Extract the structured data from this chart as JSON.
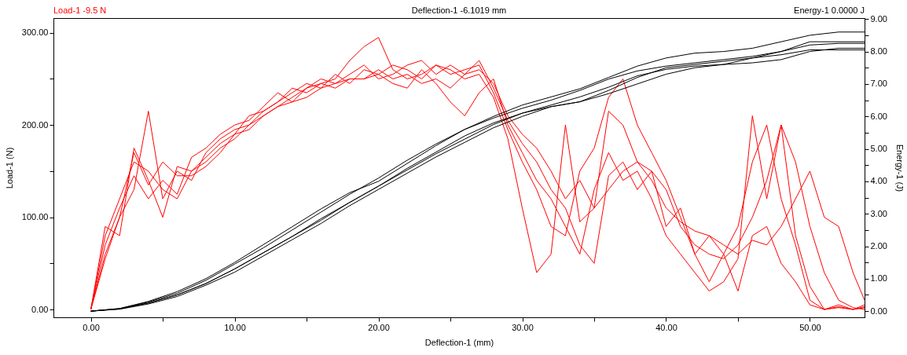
{
  "chart_data": {
    "type": "line",
    "xlabel": "Deflection-1 (mm)",
    "ylabel": "Load-1 (N)",
    "y2label": "Energy-1 (J)",
    "annotations": [
      "Load-1  -9.5 N",
      "Deflection-1  -6.1019 mm",
      "Energy-1  0.0000 J"
    ],
    "xlim": [
      -2.6,
      53.8
    ],
    "ylim": [
      -8.5,
      316
    ],
    "y2lim": [
      -0.19,
      9.03
    ],
    "xticks": [
      {
        "value": 0,
        "label": "0.00"
      },
      {
        "value": 5,
        "label": null
      },
      {
        "value": 10,
        "label": "10.00"
      },
      {
        "value": 15,
        "label": null
      },
      {
        "value": 20,
        "label": "20.00"
      },
      {
        "value": 25,
        "label": null
      },
      {
        "value": 30,
        "label": "30.00"
      },
      {
        "value": 35,
        "label": null
      },
      {
        "value": 40,
        "label": "40.00"
      },
      {
        "value": 45,
        "label": null
      },
      {
        "value": 50,
        "label": "50.00"
      }
    ],
    "yticks": [
      {
        "value": 0,
        "label": "0.00"
      },
      {
        "value": 50,
        "label": null
      },
      {
        "value": 100,
        "label": "100.00"
      },
      {
        "value": 150,
        "label": null
      },
      {
        "value": 200,
        "label": "200.00"
      },
      {
        "value": 250,
        "label": null
      },
      {
        "value": 300,
        "label": "300.00"
      }
    ],
    "y2ticks": [
      {
        "value": 0,
        "label": "0.00"
      },
      {
        "value": 0.5,
        "label": null
      },
      {
        "value": 1,
        "label": "1.00"
      },
      {
        "value": 1.5,
        "label": null
      },
      {
        "value": 2,
        "label": "2.00"
      },
      {
        "value": 2.5,
        "label": null
      },
      {
        "value": 3,
        "label": "3.00"
      },
      {
        "value": 3.5,
        "label": null
      },
      {
        "value": 4,
        "label": "4.00"
      },
      {
        "value": 4.5,
        "label": null
      },
      {
        "value": 5,
        "label": "5.00"
      },
      {
        "value": 5.5,
        "label": null
      },
      {
        "value": 6,
        "label": "6.00"
      },
      {
        "value": 6.5,
        "label": null
      },
      {
        "value": 7,
        "label": "7.00"
      },
      {
        "value": 7.5,
        "label": null
      },
      {
        "value": 8,
        "label": "8.00"
      },
      {
        "value": 8.5,
        "label": null
      },
      {
        "value": 9,
        "label": "9.00"
      }
    ],
    "marker": "none",
    "line_style": "solid",
    "x": [
      0,
      1,
      2,
      3,
      4,
      5,
      6,
      7,
      8,
      9,
      10,
      11,
      12,
      13,
      14,
      15,
      16,
      17,
      18,
      19,
      20,
      21,
      22,
      23,
      24,
      25,
      26,
      27,
      28,
      29,
      30,
      31,
      32,
      33,
      34,
      35,
      36,
      37,
      38,
      39,
      40,
      41,
      42,
      43,
      44,
      45,
      46,
      47,
      48,
      49,
      50,
      51,
      52,
      53,
      53.8
    ],
    "series": [
      {
        "color": "#ff0000",
        "values": [
          0,
          70,
          110,
          145,
          120,
          140,
          125,
          165,
          175,
          190,
          200,
          205,
          220,
          235,
          225,
          240,
          245,
          250,
          270,
          285,
          295,
          260,
          250,
          255,
          265,
          260,
          250,
          255,
          230,
          185,
          110,
          40,
          60,
          200,
          95,
          110,
          215,
          200,
          160,
          150,
          90,
          110,
          60,
          80,
          60,
          20,
          80,
          90,
          50,
          30,
          5,
          0,
          5,
          0,
          5
        ]
      },
      {
        "color": "#ff0000",
        "values": [
          0,
          55,
          100,
          130,
          215,
          120,
          150,
          140,
          170,
          185,
          195,
          200,
          215,
          225,
          235,
          245,
          240,
          255,
          245,
          260,
          255,
          265,
          260,
          250,
          265,
          255,
          260,
          265,
          235,
          195,
          160,
          130,
          90,
          80,
          150,
          175,
          230,
          250,
          200,
          170,
          140,
          100,
          60,
          30,
          60,
          90,
          160,
          200,
          120,
          70,
          10,
          0,
          3,
          0,
          2
        ]
      },
      {
        "color": "#ff0000",
        "values": [
          0,
          90,
          80,
          175,
          140,
          100,
          155,
          150,
          165,
          180,
          190,
          210,
          215,
          225,
          240,
          235,
          245,
          240,
          250,
          250,
          255,
          245,
          240,
          260,
          245,
          225,
          210,
          235,
          250,
          200,
          170,
          140,
          120,
          90,
          60,
          130,
          170,
          140,
          150,
          120,
          80,
          60,
          40,
          20,
          30,
          55,
          210,
          120,
          200,
          80,
          25,
          0,
          2,
          0,
          3
        ]
      },
      {
        "color": "#ff0000",
        "values": [
          0,
          80,
          120,
          160,
          150,
          130,
          120,
          150,
          160,
          175,
          185,
          200,
          210,
          220,
          230,
          240,
          250,
          245,
          255,
          265,
          250,
          255,
          265,
          270,
          255,
          265,
          255,
          270,
          240,
          205,
          180,
          160,
          130,
          110,
          70,
          50,
          145,
          160,
          130,
          150,
          130,
          90,
          70,
          60,
          55,
          70,
          100,
          140,
          200,
          160,
          90,
          40,
          10,
          2,
          0
        ]
      },
      {
        "color": "#ff0000",
        "values": [
          0,
          60,
          100,
          170,
          135,
          160,
          145,
          145,
          155,
          170,
          190,
          195,
          210,
          220,
          225,
          230,
          240,
          245,
          250,
          250,
          260,
          250,
          255,
          245,
          250,
          240,
          255,
          260,
          245,
          210,
          190,
          175,
          150,
          120,
          140,
          110,
          130,
          150,
          160,
          140,
          110,
          95,
          85,
          80,
          70,
          60,
          75,
          70,
          90,
          120,
          150,
          100,
          90,
          40,
          10
        ]
      },
      {
        "color": "#000000",
        "axis": "y2",
        "x": [
          0,
          2,
          4,
          6,
          8,
          10,
          12,
          14,
          16,
          18,
          20,
          22,
          24,
          26,
          28,
          30,
          32,
          34,
          36,
          38,
          40,
          42,
          44,
          46,
          48,
          50,
          52,
          53.8
        ],
        "values": [
          0,
          0.08,
          0.3,
          0.6,
          1.0,
          1.5,
          2.05,
          2.6,
          3.15,
          3.65,
          4.0,
          4.55,
          5.1,
          5.6,
          6.0,
          6.35,
          6.6,
          6.85,
          7.2,
          7.55,
          7.8,
          7.95,
          8.0,
          8.1,
          8.3,
          8.5,
          8.6,
          8.6
        ]
      },
      {
        "color": "#000000",
        "axis": "y2",
        "x": [
          0,
          2,
          4,
          6,
          8,
          10,
          12,
          14,
          16,
          18,
          20,
          22,
          24,
          26,
          28,
          30,
          32,
          34,
          36,
          38,
          40,
          42,
          44,
          46,
          48,
          50,
          52,
          53.8
        ],
        "values": [
          0,
          0.08,
          0.28,
          0.55,
          0.95,
          1.45,
          1.95,
          2.5,
          3.05,
          3.6,
          4.1,
          4.65,
          5.15,
          5.6,
          5.95,
          6.25,
          6.5,
          6.8,
          7.15,
          7.4,
          7.55,
          7.65,
          7.75,
          7.85,
          8.0,
          8.3,
          8.3,
          8.3
        ]
      },
      {
        "color": "#000000",
        "axis": "y2",
        "x": [
          0,
          2,
          4,
          6,
          8,
          10,
          12,
          14,
          16,
          18,
          20,
          22,
          24,
          26,
          28,
          30,
          32,
          34,
          36,
          38,
          40,
          42,
          44,
          46,
          48,
          50,
          52,
          53.8
        ],
        "values": [
          0,
          0.07,
          0.25,
          0.5,
          0.85,
          1.3,
          1.8,
          2.3,
          2.85,
          3.35,
          3.85,
          4.4,
          4.9,
          5.4,
          5.8,
          6.1,
          6.35,
          6.6,
          6.9,
          7.25,
          7.45,
          7.55,
          7.6,
          7.8,
          8.0,
          8.2,
          8.25,
          8.25
        ]
      },
      {
        "color": "#000000",
        "axis": "y2",
        "x": [
          0,
          2,
          4,
          6,
          8,
          10,
          12,
          14,
          16,
          18,
          20,
          22,
          24,
          26,
          28,
          30,
          32,
          34,
          36,
          38,
          40,
          42,
          44,
          46,
          48,
          50,
          52,
          53.8
        ],
        "values": [
          0,
          0.07,
          0.25,
          0.5,
          0.85,
          1.3,
          1.8,
          2.3,
          2.8,
          3.35,
          3.85,
          4.35,
          4.85,
          5.3,
          5.75,
          6.1,
          6.3,
          6.45,
          6.8,
          7.2,
          7.5,
          7.6,
          7.7,
          7.8,
          7.9,
          8.05,
          8.05,
          8.05
        ]
      },
      {
        "color": "#000000",
        "axis": "y2",
        "x": [
          0,
          2,
          4,
          6,
          8,
          10,
          12,
          14,
          16,
          18,
          20,
          22,
          24,
          26,
          28,
          30,
          32,
          34,
          36,
          38,
          40,
          42,
          44,
          46,
          48,
          50,
          52,
          53.8
        ],
        "values": [
          0,
          0.06,
          0.22,
          0.45,
          0.8,
          1.2,
          1.7,
          2.2,
          2.7,
          3.25,
          3.75,
          4.25,
          4.75,
          5.2,
          5.65,
          6.0,
          6.3,
          6.45,
          6.7,
          7.0,
          7.3,
          7.5,
          7.6,
          7.65,
          7.75,
          8.0,
          8.1,
          8.1
        ]
      }
    ]
  }
}
